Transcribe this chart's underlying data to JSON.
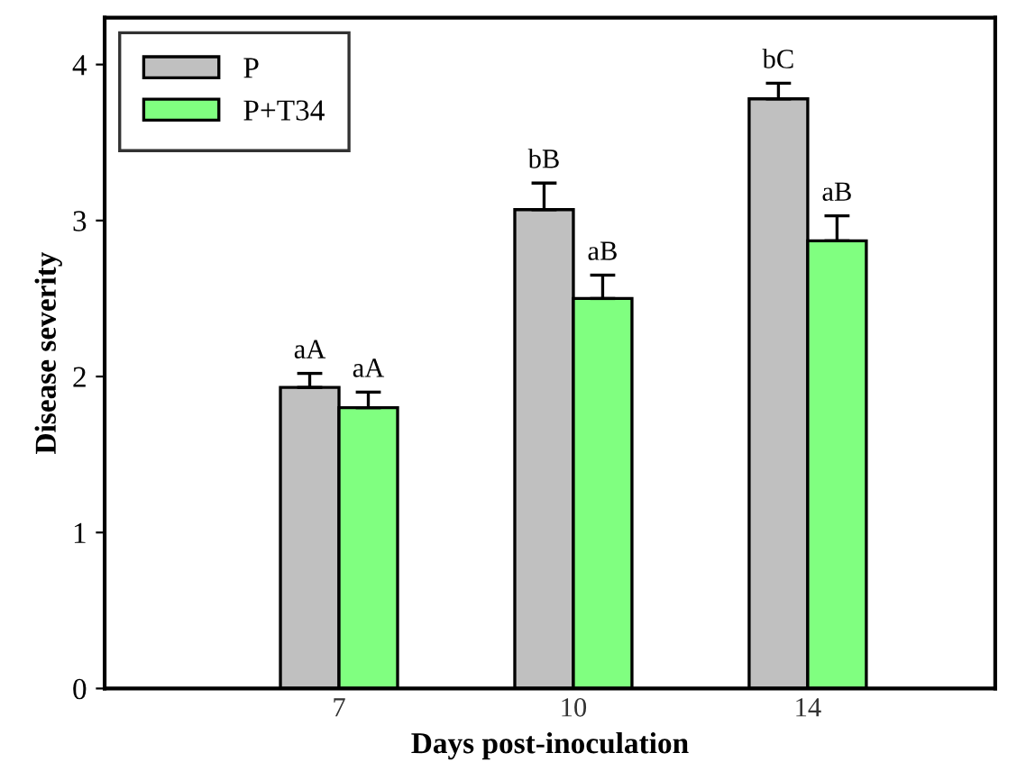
{
  "chart_data": {
    "type": "bar",
    "xlabel": "Days post-inoculation",
    "ylabel": "Disease severity",
    "categories": [
      "7",
      "10",
      "14"
    ],
    "series": [
      {
        "name": "P",
        "color": "#c0c0c0",
        "values": [
          1.93,
          3.07,
          3.78
        ],
        "errors": [
          0.09,
          0.17,
          0.1
        ],
        "value_labels": [
          "aA",
          "bB",
          "bC"
        ]
      },
      {
        "name": "P+T34",
        "color": "#80ff80",
        "values": [
          1.8,
          2.5,
          2.87
        ],
        "errors": [
          0.1,
          0.15,
          0.16
        ],
        "value_labels": [
          "aA",
          "aB",
          "aB"
        ]
      }
    ],
    "ylim": [
      0,
      4.3
    ],
    "yticks": [
      0,
      1,
      2,
      3,
      4
    ],
    "legend": "top left",
    "grid": false
  }
}
